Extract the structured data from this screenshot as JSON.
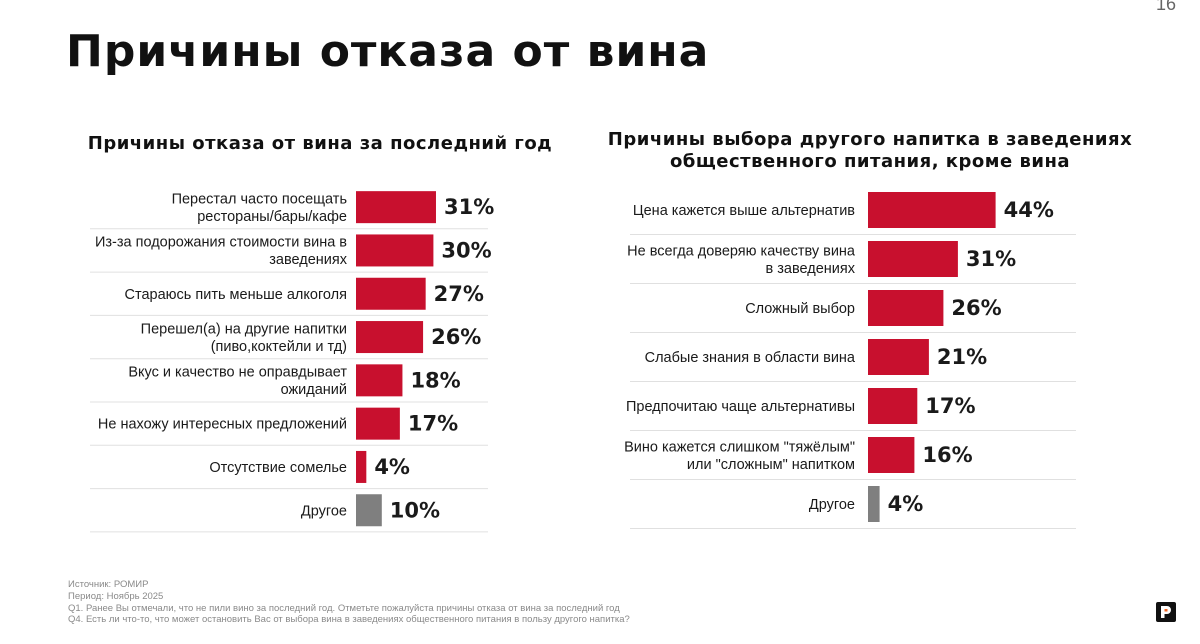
{
  "page_number": "16",
  "title": "Причины отказа от вина",
  "colors": {
    "bar": "#c8102e",
    "bar_other": "#7f7f7f",
    "divider": "#e0e0e0",
    "logo_bg": "#111111",
    "logo_accent": "#f26522"
  },
  "chart_data": [
    {
      "type": "bar",
      "orientation": "horizontal",
      "title": "Причины отказа от вина за последний год",
      "xlim": [
        0,
        100
      ],
      "categories": [
        [
          "Перестал часто посещать",
          "рестораны/бары/кафе"
        ],
        [
          "Из-за подорожания стоимости вина в",
          "заведениях"
        ],
        [
          "Стараюсь пить меньше алкоголя"
        ],
        [
          "Перешел(а) на другие напитки",
          "(пиво,коктейли и тд)"
        ],
        [
          "Вкус и качество не оправдывает",
          "ожиданий"
        ],
        [
          "Не нахожу интересных предложений"
        ],
        [
          "Отсутствие сомелье"
        ],
        [
          "Другое"
        ]
      ],
      "values": [
        31,
        30,
        27,
        26,
        18,
        17,
        4,
        10
      ],
      "value_labels": [
        "31%",
        "30%",
        "27%",
        "26%",
        "18%",
        "17%",
        "4%",
        "10%"
      ]
    },
    {
      "type": "bar",
      "orientation": "horizontal",
      "title": "Причины выбора другого напитка в заведениях общественного питания, кроме вина",
      "xlim": [
        0,
        100
      ],
      "categories": [
        [
          "Цена кажется выше альтернатив"
        ],
        [
          "Не всегда доверяю качеству вина",
          "в заведениях"
        ],
        [
          "Сложный выбор"
        ],
        [
          "Слабые знания в области вина"
        ],
        [
          "Предпочитаю чаще альтернативы"
        ],
        [
          "Вино кажется слишком \"тяжёлым\"",
          "или \"сложным\" напитком"
        ],
        [
          "Другое"
        ]
      ],
      "values": [
        44,
        31,
        26,
        21,
        17,
        16,
        4
      ],
      "value_labels": [
        "44%",
        "31%",
        "26%",
        "21%",
        "17%",
        "16%",
        "4%"
      ]
    }
  ],
  "footnotes": [
    "Источник: РОМИР",
    "Период: Ноябрь 2025",
    "Q1. Ранее Вы отмечали, что не пили вино за последний год. Отметьте пожалуйста причины отказа от вина за последний год",
    "Q4. Есть ли что-то, что может остановить Вас от выбора вина в заведениях общественного питания в пользу другого напитка?"
  ],
  "logo": {
    "letter": "Р"
  }
}
